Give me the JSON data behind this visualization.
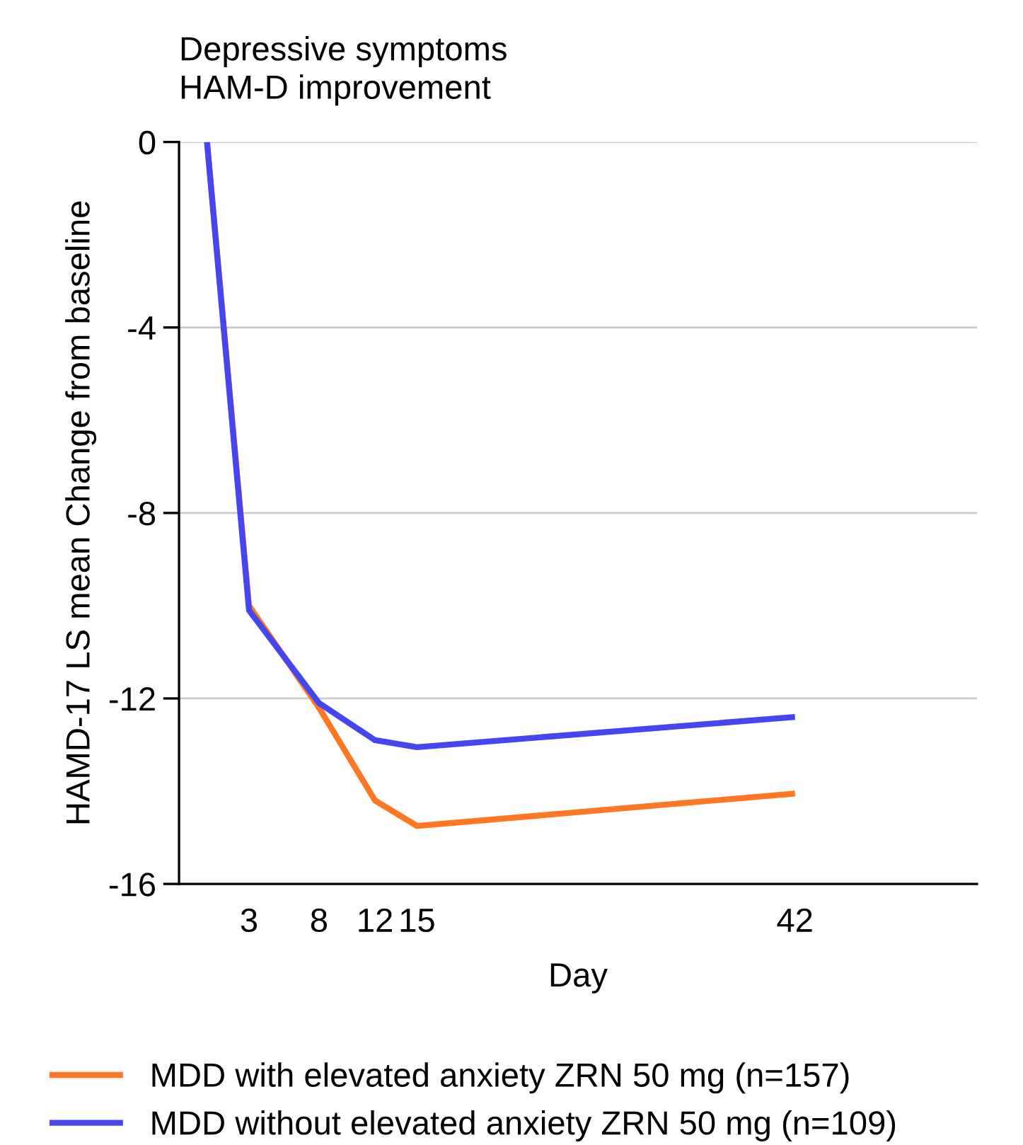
{
  "chart_data": {
    "type": "line",
    "title": "Depressive symptoms\nHAM-D improvement",
    "xlabel": "Day",
    "ylabel": "HAMD-17 LS mean Change from baseline",
    "x": [
      0,
      3,
      8,
      12,
      15,
      42
    ],
    "series": [
      {
        "name": "MDD with elevated anxiety ZRN 50 mg (n=157)",
        "color": "#ff7722",
        "values": [
          0,
          -10.0,
          -12.2,
          -14.2,
          -14.75,
          -14.05
        ]
      },
      {
        "name": "MDD without elevated anxiety ZRN 50 mg (n=109)",
        "color": "#4646f0",
        "values": [
          0,
          -10.1,
          -12.1,
          -12.9,
          -13.05,
          -12.4
        ]
      }
    ],
    "xlim": [
      -2,
      55
    ],
    "xticks": [
      3,
      8,
      12,
      15,
      42
    ],
    "ylim": [
      -16,
      0
    ],
    "yticks": [
      0,
      -4,
      -8,
      -12,
      -16
    ],
    "grid": "y",
    "legend": "bottom",
    "marker": "none",
    "line_style": "solid"
  }
}
